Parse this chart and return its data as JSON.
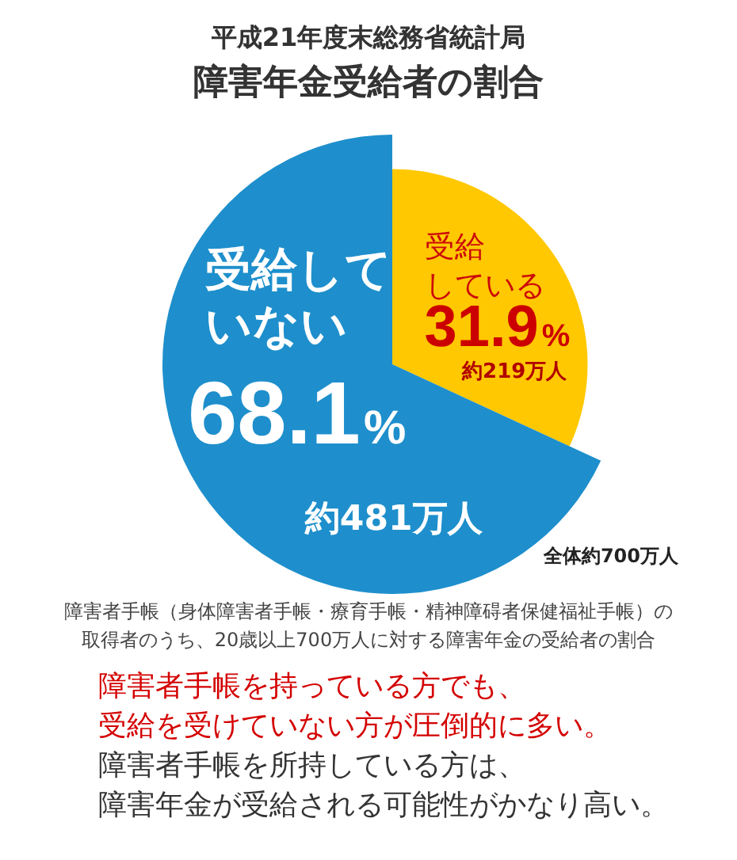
{
  "chart_data": {
    "type": "pie",
    "title": "障害年金受給者の割合",
    "subtitle": "平成21年度末総務省統計局",
    "categories": [
      "受給している",
      "受給していない"
    ],
    "values": [
      31.9,
      68.1
    ],
    "colors": [
      "#ffc800",
      "#1e8fcc"
    ],
    "value_labels": [
      "31.9%",
      "68.1%"
    ],
    "annotations": [
      {
        "text": "約219万人",
        "x": "受給している"
      },
      {
        "text": "約481万人",
        "x": "受給していない"
      },
      "全体約700万人",
      "障害者手帳（身体障害者手帳・療育手帳・精神障碍者保健福祉手帳）の取得者のうち、20歳以上700万人に対する障害年金の受給者の割合",
      "障害者手帳を持っている方でも、受給を受けていない方が圧倒的に多い。",
      "障害者手帳を所持している方は、障害年金が受給される可能性がかなり高い。"
    ]
  }
}
